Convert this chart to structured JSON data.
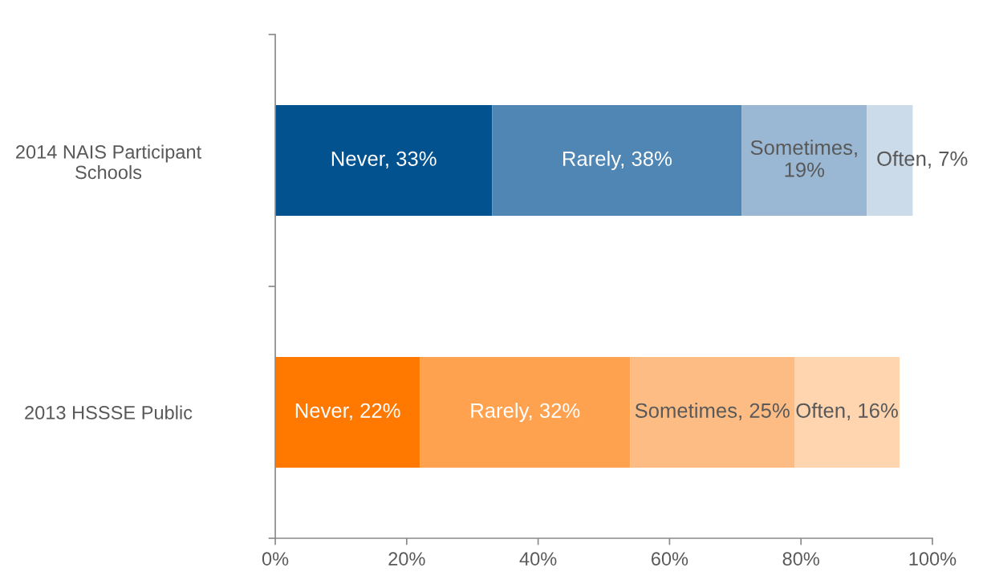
{
  "chart_data": {
    "type": "bar",
    "orientation": "horizontal",
    "stacked": true,
    "categories": [
      "2014 NAIS Participant Schools",
      "2013 HSSSE Public"
    ],
    "series": [
      {
        "colors": [
          "#02528f",
          "#ff7800"
        ],
        "values": [
          33,
          22
        ],
        "value_labels": [
          "Never, 33%",
          "Never, 22%"
        ]
      },
      {
        "colors": [
          "#4f86b4",
          "#ffa24f"
        ],
        "values": [
          38,
          32
        ],
        "value_labels": [
          "Rarely, 38%",
          "Rarely, 32%"
        ]
      },
      {
        "colors": [
          "#9ab8d3",
          "#fdbc83"
        ],
        "values": [
          19,
          25
        ],
        "value_labels": [
          "Sometimes, 19%",
          "Sometimes, 25%"
        ]
      },
      {
        "colors": [
          "#ccdbe9",
          "#ffd5b0"
        ],
        "values": [
          7,
          16
        ],
        "value_labels": [
          "Often, 7%",
          "Often, 16%"
        ]
      }
    ],
    "xlim": [
      0,
      100
    ],
    "xticks": [
      {
        "value": 0,
        "label": "0%"
      },
      {
        "value": 20,
        "label": "20%"
      },
      {
        "value": 40,
        "label": "40%"
      },
      {
        "value": 60,
        "label": "60%"
      },
      {
        "value": 80,
        "label": "80%"
      },
      {
        "value": 100,
        "label": "100%"
      }
    ]
  }
}
